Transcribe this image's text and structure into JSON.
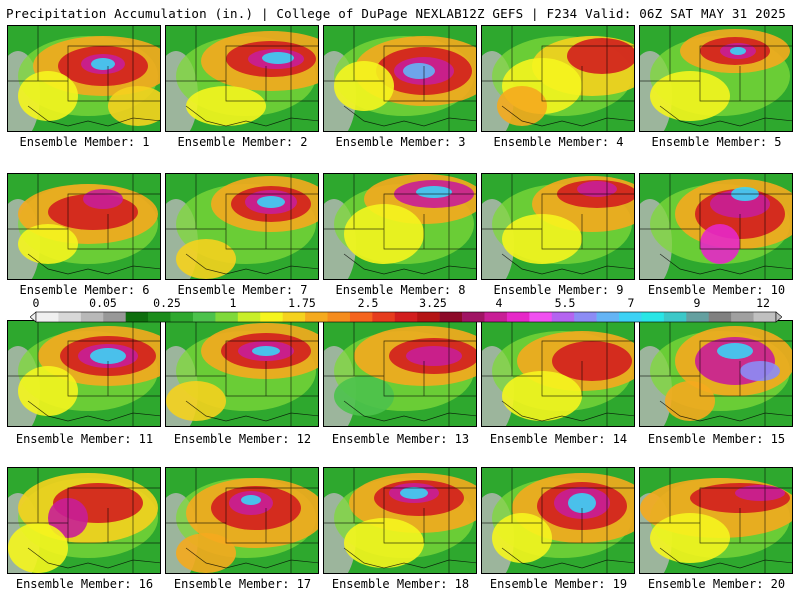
{
  "header": {
    "left_title": "Precipitation Accumulation (in.) | College of DuPage NEXLAB",
    "right_title": "12Z GEFS | F234 Valid: 06Z SAT MAY 31 2025"
  },
  "colorbar": {
    "labels": [
      "0",
      "0.05",
      "0.25",
      "1",
      "1.75",
      "2.5",
      "3.25",
      "4",
      "5.5",
      "7",
      "9",
      "12"
    ],
    "colors": [
      "#f0f0f0",
      "#d8d8d8",
      "#b8b8b8",
      "#989898",
      "#0d6e0d",
      "#1a8c1a",
      "#2ea82e",
      "#4cc24c",
      "#7fd93a",
      "#c8ef2a",
      "#f5f51e",
      "#f5d21e",
      "#f5aa1e",
      "#f58c1e",
      "#f5641e",
      "#e63c1e",
      "#d21e1e",
      "#b41414",
      "#8c0a28",
      "#a01464",
      "#c81e96",
      "#e628c8",
      "#f050f0",
      "#b464f0",
      "#8c8cf5",
      "#64b4f5",
      "#3cd2f5",
      "#28e6e6",
      "#3cc8c8",
      "#64a0a0",
      "#808080",
      "#a0a0a0",
      "#c0c0c0"
    ]
  },
  "members": [
    {
      "label": "Ensemble Member: 1"
    },
    {
      "label": "Ensemble Member: 2"
    },
    {
      "label": "Ensemble Member: 3"
    },
    {
      "label": "Ensemble Member: 4"
    },
    {
      "label": "Ensemble Member: 5"
    },
    {
      "label": "Ensemble Member: 6"
    },
    {
      "label": "Ensemble Member: 7"
    },
    {
      "label": "Ensemble Member: 8"
    },
    {
      "label": "Ensemble Member: 9"
    },
    {
      "label": "Ensemble Member: 10"
    },
    {
      "label": "Ensemble Member: 11"
    },
    {
      "label": "Ensemble Member: 12"
    },
    {
      "label": "Ensemble Member: 13"
    },
    {
      "label": "Ensemble Member: 14"
    },
    {
      "label": "Ensemble Member: 15"
    },
    {
      "label": "Ensemble Member: 16"
    },
    {
      "label": "Ensemble Member: 17"
    },
    {
      "label": "Ensemble Member: 18"
    },
    {
      "label": "Ensemble Member: 19"
    },
    {
      "label": "Ensemble Member: 20"
    }
  ]
}
